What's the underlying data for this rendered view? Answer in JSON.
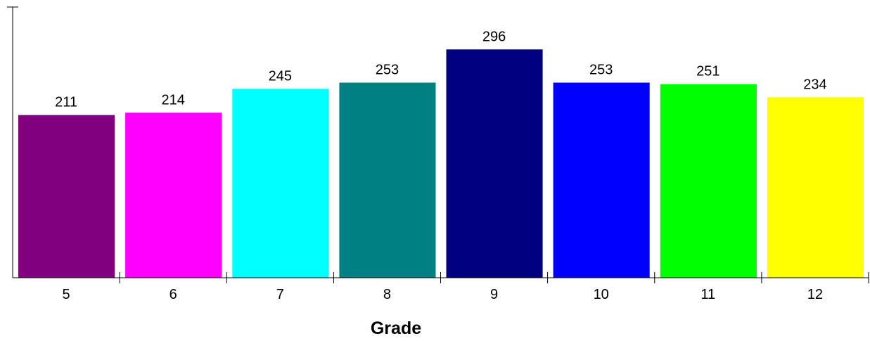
{
  "chart_data": {
    "type": "bar",
    "title": "",
    "ylabel": "",
    "xlabel": "Grade",
    "categories": [
      "5",
      "6",
      "7",
      "8",
      "9",
      "10",
      "11",
      "12"
    ],
    "values": [
      211,
      214,
      245,
      253,
      296,
      253,
      251,
      234
    ],
    "value_labels": [
      "211",
      "214",
      "245",
      "253",
      "296",
      "253",
      "251",
      "234"
    ],
    "colors": [
      "#800080",
      "#ff00ff",
      "#00ffff",
      "#008080",
      "#000080",
      "#0000ff",
      "#00ff00",
      "#ffff00"
    ],
    "ylim": [
      0,
      351
    ],
    "grid": false,
    "legend": "none"
  }
}
